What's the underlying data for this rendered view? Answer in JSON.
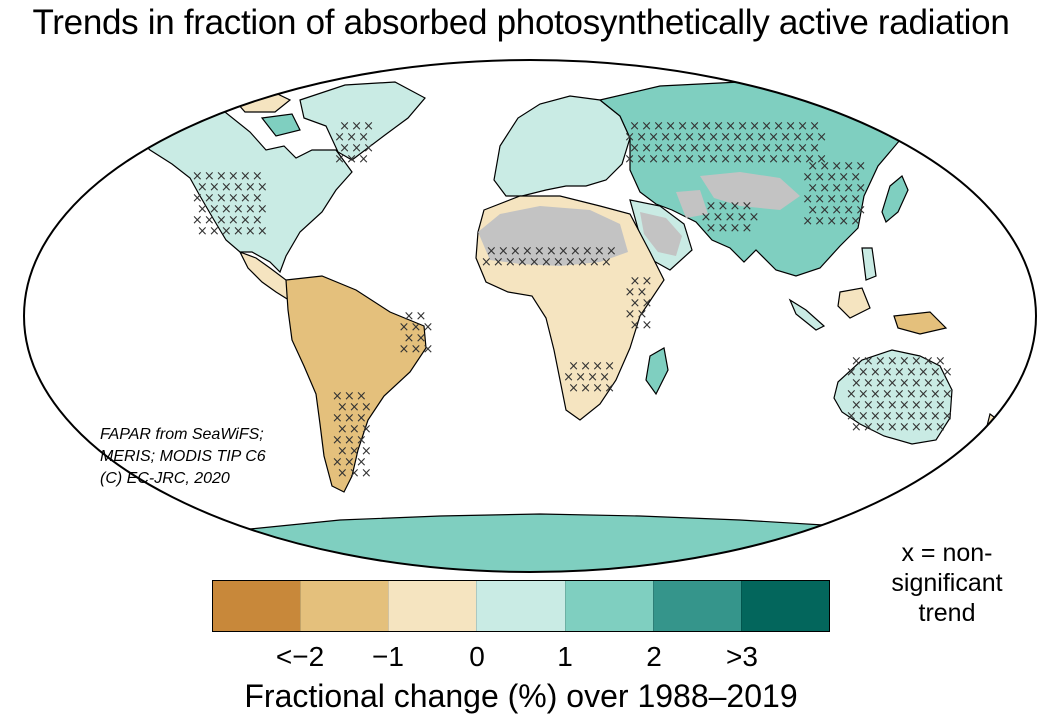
{
  "title": "Trends in fraction of absorbed photosynthetically active radiation",
  "credit": {
    "lines": [
      "FAPAR from SeaWiFS;",
      "MERIS; MODIS TIP C6",
      "(C) EC-JRC, 2020"
    ]
  },
  "legend_note": {
    "lines": [
      "x = non-",
      "significant",
      "trend"
    ]
  },
  "colorbar": {
    "colors": [
      "#c8883a",
      "#e4c07c",
      "#f5e4c0",
      "#c9ebe4",
      "#7fcfc0",
      "#35958b",
      "#03665c"
    ],
    "tick_labels": [
      "<−2",
      "−1",
      "0",
      "1",
      "2",
      ">3"
    ],
    "axis_label": "Fractional change (%) over 1988–2019"
  },
  "map_colors": {
    "ocean": "#ffffff",
    "no_data_desert": "#c3c3c3",
    "coastline": "#000000",
    "hatch_mark": "#333333"
  }
}
